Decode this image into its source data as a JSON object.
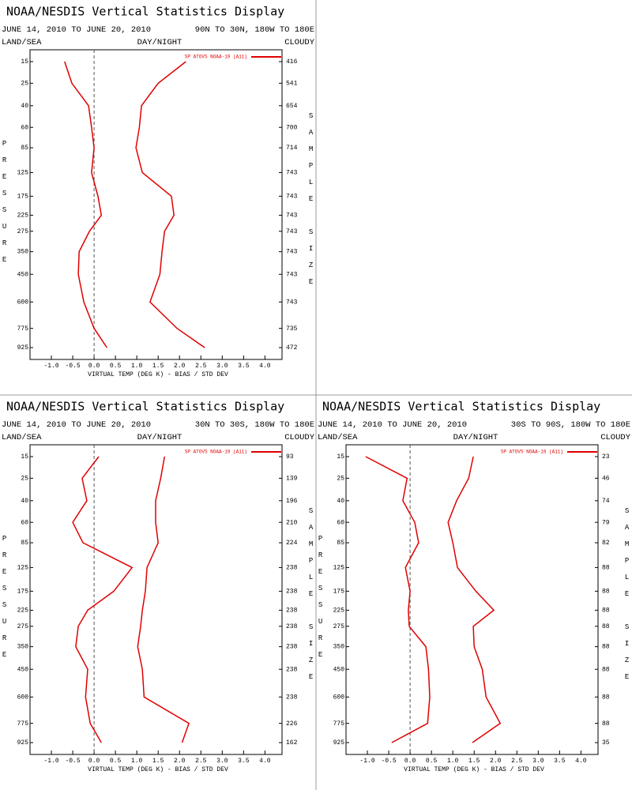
{
  "chart_data": [
    {
      "type": "profile",
      "title": "NOAA/NESDIS Vertical Statistics Display",
      "date_range": "JUNE 14, 2010 TO JUNE 20, 2010",
      "region": "90N TO 30N, 180W TO 180E",
      "land_sea_label": "LAND/SEA",
      "day_night_label": "DAY/NIGHT",
      "cloud_label": "CLOUDY",
      "ylabel": "PRESSURE",
      "y2label": "SAMPLE SIZE",
      "xlabel": "VIRTUAL TEMP (DEG K) - BIAS / STD DEV",
      "categories": [
        15,
        25,
        40,
        60,
        85,
        125,
        175,
        225,
        275,
        350,
        450,
        600,
        775,
        925
      ],
      "sample_size": [
        416,
        541,
        654,
        700,
        714,
        743,
        743,
        743,
        743,
        743,
        743,
        743,
        735,
        472
      ],
      "series": [
        {
          "name": "SP ATOVS NOAA-19 (A11)",
          "color": "#e00000",
          "bias": [
            -0.69,
            -0.52,
            -0.13,
            -0.06,
            0.0,
            -0.06,
            0.09,
            0.17,
            -0.11,
            -0.35,
            -0.37,
            -0.24,
            0.0,
            0.3
          ],
          "std_dev": [
            2.15,
            1.5,
            1.11,
            1.06,
            0.98,
            1.13,
            1.81,
            1.87,
            1.65,
            1.59,
            1.54,
            1.31,
            1.94,
            2.59
          ]
        }
      ],
      "xlim": [
        -1.5,
        4.4
      ],
      "xticks": [
        {
          "value": -1,
          "label": "-1.0"
        },
        {
          "value": -0.5,
          "label": "-0.5"
        },
        {
          "value": 0,
          "label": "0.0"
        },
        {
          "value": 0.5,
          "label": "0.5"
        },
        {
          "value": 1,
          "label": "1.0"
        },
        {
          "value": 1.5,
          "label": "1.5"
        },
        {
          "value": 2,
          "label": "2.0"
        },
        {
          "value": 2.5,
          "label": "2.5"
        },
        {
          "value": 3,
          "label": "3.0"
        },
        {
          "value": 3.5,
          "label": "3.5"
        },
        {
          "value": 4,
          "label": "4.0"
        }
      ]
    },
    {
      "type": "profile",
      "title": "NOAA/NESDIS Vertical Statistics Display",
      "date_range": "JUNE 14, 2010 TO JUNE 20, 2010",
      "region": "30N TO 30S, 180W TO 180E",
      "land_sea_label": "LAND/SEA",
      "day_night_label": "DAY/NIGHT",
      "cloud_label": "CLOUDY",
      "ylabel": "PRESSURE",
      "y2label": "SAMPLE SIZE",
      "xlabel": "VIRTUAL TEMP (DEG K) - BIAS / STD DEV",
      "categories": [
        15,
        25,
        40,
        60,
        85,
        125,
        175,
        225,
        275,
        350,
        450,
        600,
        775,
        925
      ],
      "sample_size": [
        93,
        139,
        196,
        210,
        224,
        238,
        238,
        238,
        238,
        238,
        238,
        238,
        226,
        162
      ],
      "series": [
        {
          "name": "SP ATOVS NOAA-19 (A11)",
          "color": "#e00000",
          "bias": [
            0.11,
            -0.28,
            -0.17,
            -0.5,
            -0.26,
            0.89,
            0.46,
            -0.15,
            -0.37,
            -0.43,
            -0.15,
            -0.2,
            -0.09,
            0.17
          ],
          "std_dev": [
            1.65,
            1.56,
            1.44,
            1.44,
            1.5,
            1.24,
            1.2,
            1.13,
            1.09,
            1.02,
            1.13,
            1.17,
            2.22,
            2.06
          ]
        }
      ],
      "xlim": [
        -1.5,
        4.4
      ],
      "xticks": [
        {
          "value": -1,
          "label": "-1.0"
        },
        {
          "value": -0.5,
          "label": "-0.5"
        },
        {
          "value": 0,
          "label": "0.0"
        },
        {
          "value": 0.5,
          "label": "0.5"
        },
        {
          "value": 1,
          "label": "1.0"
        },
        {
          "value": 1.5,
          "label": "1.5"
        },
        {
          "value": 2,
          "label": "2.0"
        },
        {
          "value": 2.5,
          "label": "2.5"
        },
        {
          "value": 3,
          "label": "3.0"
        },
        {
          "value": 3.5,
          "label": "3.5"
        },
        {
          "value": 4,
          "label": "4.0"
        }
      ]
    },
    {
      "type": "profile",
      "title": "NOAA/NESDIS Vertical Statistics Display",
      "date_range": "JUNE 14, 2010 TO JUNE 20, 2010",
      "region": "30S TO 90S, 180W TO 180E",
      "land_sea_label": "LAND/SEA",
      "day_night_label": "DAY/NIGHT",
      "cloud_label": "CLOUDY",
      "ylabel": "PRESSURE",
      "y2label": "SAMPLE SIZE",
      "xlabel": "VIRTUAL TEMP (DEG K) - BIAS / STD DEV",
      "categories": [
        15,
        25,
        40,
        60,
        85,
        125,
        175,
        225,
        275,
        350,
        450,
        600,
        775,
        925
      ],
      "sample_size": [
        23,
        46,
        74,
        79,
        82,
        88,
        88,
        88,
        88,
        88,
        88,
        88,
        88,
        35
      ],
      "series": [
        {
          "name": "SP ATOVS NOAA-19 (A11)",
          "color": "#e00000",
          "bias": [
            -1.04,
            -0.07,
            -0.17,
            0.11,
            0.2,
            -0.11,
            0.0,
            -0.04,
            -0.02,
            0.37,
            0.43,
            0.46,
            0.41,
            -0.43
          ],
          "std_dev": [
            1.48,
            1.37,
            1.09,
            0.89,
            1.0,
            1.11,
            1.54,
            1.96,
            1.48,
            1.5,
            1.69,
            1.78,
            2.11,
            1.46
          ]
        }
      ],
      "xlim": [
        -1.5,
        4.4
      ],
      "xticks": [
        {
          "value": -1,
          "label": "-1.0"
        },
        {
          "value": -0.5,
          "label": "-0.5"
        },
        {
          "value": 0,
          "label": "0.0"
        },
        {
          "value": 0.5,
          "label": "0.5"
        },
        {
          "value": 1,
          "label": "1.0"
        },
        {
          "value": 1.5,
          "label": "1.5"
        },
        {
          "value": 2,
          "label": "2.0"
        },
        {
          "value": 2.5,
          "label": "2.5"
        },
        {
          "value": 3,
          "label": "3.0"
        },
        {
          "value": 3.5,
          "label": "3.5"
        },
        {
          "value": 4,
          "label": "4.0"
        }
      ]
    }
  ]
}
